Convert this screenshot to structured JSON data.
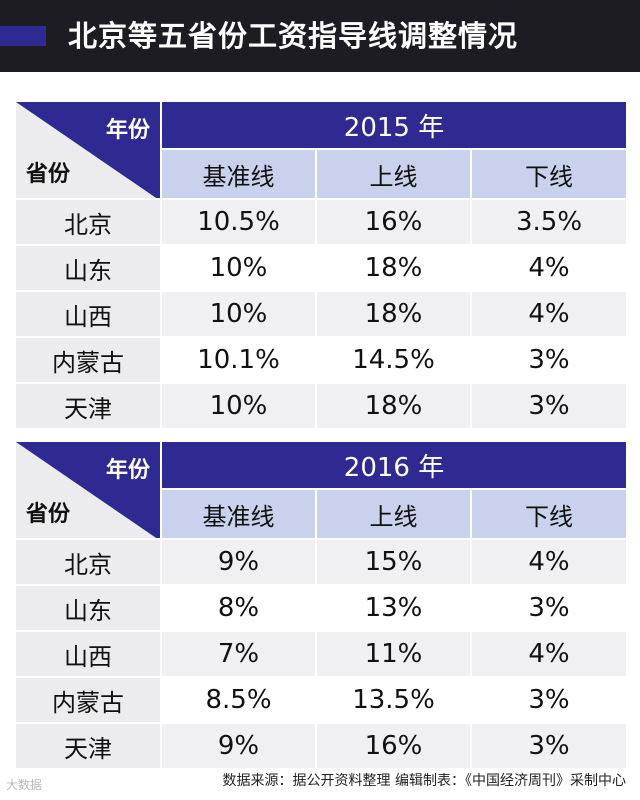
{
  "title": "北京等五省份工资指导线调整情况",
  "header_labels": {
    "year": "年份",
    "province": "省份",
    "columns": [
      "基准线",
      "上线",
      "下线"
    ]
  },
  "tables": [
    {
      "year_label": "2015 年",
      "rows": [
        {
          "province": "北京",
          "baseline": "10.5%",
          "upper": "16%",
          "lower": "3.5%"
        },
        {
          "province": "山东",
          "baseline": "10%",
          "upper": "18%",
          "lower": "4%"
        },
        {
          "province": "山西",
          "baseline": "10%",
          "upper": "18%",
          "lower": "4%"
        },
        {
          "province": "内蒙古",
          "baseline": "10.1%",
          "upper": "14.5%",
          "lower": "3%"
        },
        {
          "province": "天津",
          "baseline": "10%",
          "upper": "18%",
          "lower": "3%"
        }
      ]
    },
    {
      "year_label": "2016 年",
      "rows": [
        {
          "province": "北京",
          "baseline": "9%",
          "upper": "15%",
          "lower": "4%"
        },
        {
          "province": "山东",
          "baseline": "8%",
          "upper": "13%",
          "lower": "3%"
        },
        {
          "province": "山西",
          "baseline": "7%",
          "upper": "11%",
          "lower": "4%"
        },
        {
          "province": "内蒙古",
          "baseline": "8.5%",
          "upper": "13.5%",
          "lower": "3%"
        },
        {
          "province": "天津",
          "baseline": "9%",
          "upper": "16%",
          "lower": "3%"
        }
      ]
    }
  ],
  "source": "数据来源：据公开资料整理  编辑制表：《中国经济周刊》采制中心",
  "watermark": "大数据",
  "colors": {
    "title_bar": "#1c1c22",
    "accent": "#2f2a92",
    "column_header": "#c9d1ec",
    "row_label": "#ececee"
  }
}
